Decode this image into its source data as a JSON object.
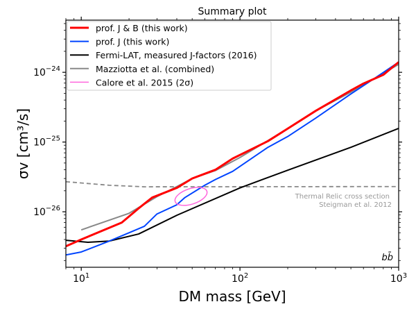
{
  "chart_data": {
    "type": "line",
    "title": "Summary plot",
    "xlabel": "DM mass [GeV]",
    "ylabel": "σv [cm³/s]",
    "xscale": "log",
    "yscale": "log",
    "xlim": [
      8,
      1000
    ],
    "ylim": [
      1.6e-27,
      5.6e-24
    ],
    "x_ticks": [
      {
        "value": 10,
        "base": "10",
        "exp": "1"
      },
      {
        "value": 100,
        "base": "10",
        "exp": "2"
      },
      {
        "value": 1000,
        "base": "10",
        "exp": "3"
      }
    ],
    "y_ticks": [
      {
        "value": 1e-26,
        "base": "10",
        "exp": "−26"
      },
      {
        "value": 1e-25,
        "base": "10",
        "exp": "−25"
      },
      {
        "value": 1e-24,
        "base": "10",
        "exp": "−24"
      }
    ],
    "grid": false,
    "legend_position": "top-left",
    "series": [
      {
        "name": "prof. J & B (this work)",
        "color": "#ff0000",
        "width": 3,
        "x": [
          8,
          10,
          18,
          23,
          28,
          40,
          50,
          70,
          90,
          150,
          200,
          300,
          500,
          600,
          800,
          1000
        ],
        "y": [
          3.2e-27,
          4e-27,
          7e-27,
          1.12e-26,
          1.6e-26,
          2.2e-26,
          3e-26,
          4e-26,
          5.8e-26,
          1.03e-25,
          1.56e-25,
          2.8e-25,
          5.5e-25,
          6.9e-25,
          9.2e-25,
          1.4e-24
        ]
      },
      {
        "name": "prof. J (this work)",
        "color": "#0044ff",
        "width": 2,
        "x": [
          8,
          10,
          15,
          20,
          25,
          30,
          40,
          45,
          60,
          70,
          90,
          150,
          200,
          300,
          500,
          700,
          1000
        ],
        "y": [
          2.4e-27,
          2.65e-27,
          3.8e-27,
          5e-27,
          6.2e-27,
          9.3e-27,
          1.26e-26,
          1.6e-26,
          2.4e-26,
          2.9e-26,
          3.8e-26,
          8.4e-26,
          1.2e-25,
          2.2e-25,
          4.9e-25,
          8.1e-25,
          1.4e-24
        ]
      },
      {
        "name": "Fermi-LAT, measured J-factors (2016)",
        "color": "#000000",
        "width": 2,
        "x": [
          8,
          11,
          15,
          23,
          40,
          100,
          200,
          500,
          1000
        ],
        "y": [
          3.9e-27,
          3.65e-27,
          3.8e-27,
          4.8e-27,
          8.9e-27,
          2.2e-26,
          3.95e-26,
          8.4e-26,
          1.57e-25
        ]
      },
      {
        "name": "Mazziotta et al. (combined)",
        "color": "#888888",
        "width": 2,
        "x": [
          10,
          20,
          30,
          40,
          50,
          70,
          100,
          200,
          300,
          500,
          1000
        ],
        "y": [
          5.5e-27,
          9.5e-27,
          1.65e-26,
          2.3e-26,
          3e-26,
          3.9e-26,
          6e-26,
          1.56e-25,
          2.8e-25,
          5.2e-25,
          1.3e-24
        ]
      },
      {
        "name": "Calore et al. 2015 (2σ)",
        "color": "#ff66dd",
        "width": 1.5,
        "kind": "ellipse",
        "x_range": [
          39,
          62
        ],
        "y_range": [
          1.2e-26,
          2.3e-26
        ]
      }
    ],
    "reference_line": {
      "color": "#888888",
      "x": [
        8,
        15,
        25,
        1000
      ],
      "y": [
        2.7e-26,
        2.4e-26,
        2.28e-26,
        2.3e-26
      ],
      "label_line1": "Thermal Relic cross section",
      "label_line2": "Steigman et al. 2012"
    },
    "annotation": "bb̄"
  }
}
